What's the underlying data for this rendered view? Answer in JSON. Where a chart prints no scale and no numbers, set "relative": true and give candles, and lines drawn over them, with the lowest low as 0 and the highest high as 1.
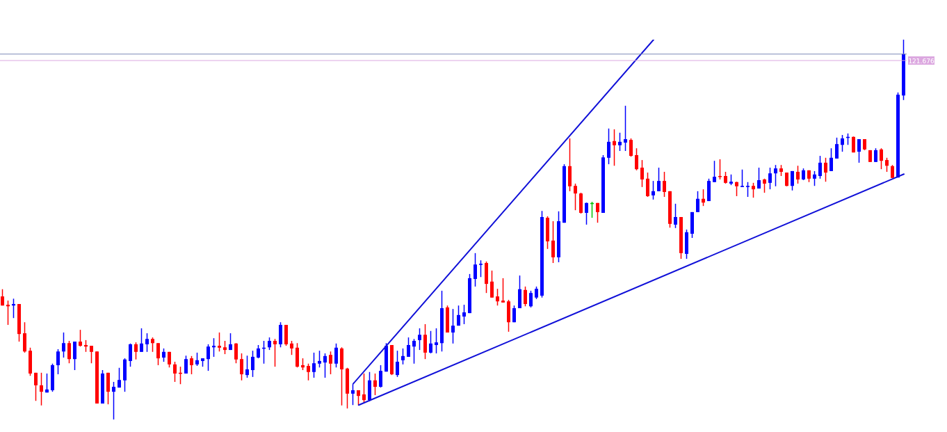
{
  "chart_data": {
    "type": "candlestick",
    "relative": true,
    "tick_labels": false,
    "categories": [
      null,
      null,
      null,
      null,
      null,
      null,
      null,
      null,
      null,
      null,
      null,
      null,
      null,
      null,
      null,
      null,
      null,
      null,
      null,
      null,
      null,
      null,
      null,
      null,
      null,
      null,
      null,
      null,
      null,
      null,
      null,
      null,
      null,
      null,
      null,
      null,
      null,
      null,
      null,
      null,
      null,
      null,
      null,
      null,
      null,
      null,
      null,
      null,
      null,
      null,
      null,
      null,
      null,
      null,
      null,
      null,
      null,
      null,
      null,
      null,
      null,
      null,
      null,
      null,
      null,
      null,
      null,
      null,
      null,
      null,
      null,
      null,
      null,
      null,
      null,
      null,
      null,
      null,
      null,
      null,
      null,
      null,
      null,
      null,
      null,
      null,
      null,
      null,
      null,
      null,
      null,
      null,
      null,
      null,
      null,
      null,
      null,
      null,
      null,
      null,
      null,
      null,
      null,
      null,
      null,
      null,
      null,
      null,
      null,
      null,
      null,
      null,
      null,
      null,
      null,
      null,
      null,
      null,
      null,
      null,
      null,
      null,
      null,
      null,
      null,
      null,
      null,
      null,
      null,
      null,
      null,
      null,
      null,
      null,
      null,
      null,
      null,
      null,
      null,
      null,
      null,
      null,
      null,
      null,
      null,
      null,
      null,
      null,
      null,
      null,
      null,
      null,
      null,
      null,
      null,
      null,
      null,
      null,
      null,
      null,
      null,
      null,
      null
    ],
    "ohlc": [
      [
        0.324,
        0.343,
        0.3,
        0.3
      ],
      [
        0.302,
        0.313,
        0.249,
        0.298
      ],
      [
        0.3,
        0.318,
        0.267,
        0.304
      ],
      [
        0.304,
        0.304,
        0.205,
        0.225
      ],
      [
        0.227,
        0.256,
        0.176,
        0.179
      ],
      [
        0.181,
        0.189,
        0.115,
        0.121
      ],
      [
        0.123,
        0.123,
        0.049,
        0.09
      ],
      [
        0.09,
        0.123,
        0.037,
        0.073
      ],
      [
        0.071,
        0.121,
        0.071,
        0.079
      ],
      [
        0.077,
        0.147,
        0.073,
        0.143
      ],
      [
        0.143,
        0.185,
        0.119,
        0.179
      ],
      [
        0.179,
        0.229,
        0.163,
        0.201
      ],
      [
        0.201,
        0.207,
        0.148,
        0.159
      ],
      [
        0.159,
        0.205,
        0.13,
        0.205
      ],
      [
        0.205,
        0.236,
        0.192,
        0.194
      ],
      [
        0.196,
        0.209,
        0.178,
        0.192
      ],
      [
        0.194,
        0.194,
        0.148,
        0.178
      ],
      [
        0.179,
        0.179,
        0.042,
        0.042
      ],
      [
        0.042,
        0.13,
        0.042,
        0.121
      ],
      [
        0.123,
        0.123,
        0.04,
        0.073
      ],
      [
        0.073,
        0.099,
        0,
        0.086
      ],
      [
        0.084,
        0.136,
        0.084,
        0.104
      ],
      [
        0.103,
        0.161,
        0.073,
        0.158
      ],
      [
        0.154,
        0.2,
        0.139,
        0.198
      ],
      [
        0.198,
        0.203,
        0.158,
        0.178
      ],
      [
        0.178,
        0.24,
        0.178,
        0.2
      ],
      [
        0.198,
        0.227,
        0.178,
        0.212
      ],
      [
        0.212,
        0.216,
        0.178,
        0.201
      ],
      [
        0.201,
        0.201,
        0.143,
        0.161
      ],
      [
        0.163,
        0.187,
        0.152,
        0.178
      ],
      [
        0.178,
        0.178,
        0.137,
        0.145
      ],
      [
        0.145,
        0.152,
        0.099,
        0.121
      ],
      [
        0.123,
        0.139,
        0.093,
        0.121
      ],
      [
        0.121,
        0.168,
        0.121,
        0.159
      ],
      [
        0.161,
        0.167,
        0.119,
        0.143
      ],
      [
        0.145,
        0.176,
        0.141,
        0.156
      ],
      [
        0.154,
        0.161,
        0.139,
        0.161
      ],
      [
        0.159,
        0.198,
        0.128,
        0.192
      ],
      [
        0.19,
        0.214,
        0.165,
        0.194
      ],
      [
        0.194,
        0.229,
        0.179,
        0.189
      ],
      [
        0.19,
        0.207,
        0.172,
        0.183
      ],
      [
        0.183,
        0.227,
        0.183,
        0.198
      ],
      [
        0.2,
        0.201,
        0.148,
        0.158
      ],
      [
        0.159,
        0.174,
        0.103,
        0.119
      ],
      [
        0.117,
        0.168,
        0.11,
        0.132
      ],
      [
        0.13,
        0.181,
        0.112,
        0.165
      ],
      [
        0.163,
        0.196,
        0.161,
        0.187
      ],
      [
        0.187,
        0.207,
        0.147,
        0.189
      ],
      [
        0.19,
        0.216,
        0.183,
        0.207
      ],
      [
        0.207,
        0.212,
        0.139,
        0.198
      ],
      [
        0.198,
        0.256,
        0.19,
        0.249
      ],
      [
        0.249,
        0.249,
        0.194,
        0.198
      ],
      [
        0.2,
        0.207,
        0.17,
        0.187
      ],
      [
        0.189,
        0.201,
        0.137,
        0.139
      ],
      [
        0.143,
        0.161,
        0.13,
        0.137
      ],
      [
        0.141,
        0.147,
        0.103,
        0.125
      ],
      [
        0.125,
        0.176,
        0.11,
        0.148
      ],
      [
        0.147,
        0.181,
        0.137,
        0.154
      ],
      [
        0.15,
        0.174,
        0.11,
        0.167
      ],
      [
        0.17,
        0.179,
        0.119,
        0.147
      ],
      [
        0.147,
        0.2,
        0.137,
        0.189
      ],
      [
        0.187,
        0.19,
        0.037,
        0.132
      ],
      [
        0.134,
        0.136,
        0.029,
        0.068
      ],
      [
        0.068,
        0.093,
        0.038,
        0.077
      ],
      [
        0.077,
        0.077,
        0.037,
        0.062
      ],
      [
        0.066,
        0.121,
        0.044,
        0.051
      ],
      [
        0.051,
        0.125,
        0.048,
        0.103
      ],
      [
        0.103,
        0.121,
        0.064,
        0.086
      ],
      [
        0.086,
        0.143,
        0.084,
        0.128
      ],
      [
        0.126,
        0.201,
        0.126,
        0.194
      ],
      [
        0.196,
        0.196,
        0.117,
        0.119
      ],
      [
        0.117,
        0.181,
        0.112,
        0.152
      ],
      [
        0.156,
        0.187,
        0.145,
        0.167
      ],
      [
        0.165,
        0.216,
        0.165,
        0.196
      ],
      [
        0.192,
        0.212,
        0.147,
        0.207
      ],
      [
        0.209,
        0.24,
        0.183,
        0.223
      ],
      [
        0.223,
        0.251,
        0.159,
        0.176
      ],
      [
        0.176,
        0.233,
        0.174,
        0.2
      ],
      [
        0.196,
        0.24,
        0.174,
        0.203
      ],
      [
        0.201,
        0.339,
        0.179,
        0.293
      ],
      [
        0.295,
        0.3,
        0.229,
        0.229
      ],
      [
        0.229,
        0.291,
        0.2,
        0.247
      ],
      [
        0.247,
        0.3,
        0.247,
        0.275
      ],
      [
        0.271,
        0.302,
        0.251,
        0.282
      ],
      [
        0.28,
        0.383,
        0.28,
        0.372
      ],
      [
        0.37,
        0.438,
        0.35,
        0.408
      ],
      [
        0.407,
        0.419,
        0.375,
        0.41
      ],
      [
        0.412,
        0.416,
        0.333,
        0.357
      ],
      [
        0.363,
        0.392,
        0.321,
        0.321
      ],
      [
        0.324,
        0.344,
        0.3,
        0.311
      ],
      [
        0.313,
        0.372,
        0.308,
        0.308
      ],
      [
        0.311,
        0.315,
        0.231,
        0.256
      ],
      [
        0.256,
        0.3,
        0.256,
        0.293
      ],
      [
        0.293,
        0.379,
        0.293,
        0.343
      ],
      [
        0.341,
        0.35,
        0.298,
        0.304
      ],
      [
        0.298,
        0.339,
        0.295,
        0.333
      ],
      [
        0.321,
        0.35,
        0.317,
        0.344
      ],
      [
        0.326,
        0.549,
        0.321,
        0.533
      ],
      [
        0.531,
        0.535,
        0.449,
        0.469
      ],
      [
        0.471,
        0.522,
        0.412,
        0.427
      ],
      [
        0.427,
        0.548,
        0.414,
        0.522
      ],
      [
        0.518,
        0.672,
        0.518,
        0.667
      ],
      [
        0.667,
        0.74,
        0.601,
        0.614
      ],
      [
        0.615,
        0.621,
        0.551,
        0.595
      ],
      [
        0.595,
        0.597,
        0.542,
        0.544
      ],
      [
        0.544,
        0.571,
        0.513,
        0.57
      ],
      [
        0.57,
        0.573,
        0.531,
        0.57
      ],
      [
        0.57,
        0.57,
        0.518,
        0.546
      ],
      [
        0.544,
        0.696,
        0.544,
        0.69
      ],
      [
        0.689,
        0.766,
        0.672,
        0.731
      ],
      [
        0.733,
        0.764,
        0.668,
        0.722
      ],
      [
        0.722,
        0.755,
        0.707,
        0.731
      ],
      [
        0.729,
        0.826,
        0.707,
        0.738
      ],
      [
        0.736,
        0.74,
        0.692,
        0.694
      ],
      [
        0.696,
        0.714,
        0.656,
        0.659
      ],
      [
        0.663,
        0.683,
        0.612,
        0.632
      ],
      [
        0.634,
        0.65,
        0.586,
        0.588
      ],
      [
        0.59,
        0.628,
        0.579,
        0.601
      ],
      [
        0.601,
        0.663,
        0.601,
        0.628
      ],
      [
        0.628,
        0.652,
        0.586,
        0.599
      ],
      [
        0.601,
        0.601,
        0.505,
        0.515
      ],
      [
        0.513,
        0.568,
        0.504,
        0.533
      ],
      [
        0.533,
        0.533,
        0.423,
        0.438
      ],
      [
        0.436,
        0.5,
        0.423,
        0.493
      ],
      [
        0.489,
        0.546,
        0.478,
        0.546
      ],
      [
        0.546,
        0.601,
        0.546,
        0.581
      ],
      [
        0.581,
        0.606,
        0.562,
        0.571
      ],
      [
        0.575,
        0.634,
        0.575,
        0.628
      ],
      [
        0.625,
        0.681,
        0.625,
        0.639
      ],
      [
        0.641,
        0.685,
        0.632,
        0.639
      ],
      [
        0.641,
        0.652,
        0.621,
        0.623
      ],
      [
        0.621,
        0.645,
        0.617,
        0.626
      ],
      [
        0.625,
        0.626,
        0.588,
        0.614
      ],
      [
        0.612,
        0.658,
        0.612,
        0.615
      ],
      [
        0.612,
        0.625,
        0.586,
        0.615
      ],
      [
        0.615,
        0.623,
        0.584,
        0.606
      ],
      [
        0.608,
        0.663,
        0.608,
        0.63
      ],
      [
        0.632,
        0.634,
        0.597,
        0.621
      ],
      [
        0.623,
        0.663,
        0.606,
        0.648
      ],
      [
        0.648,
        0.67,
        0.614,
        0.661
      ],
      [
        0.661,
        0.67,
        0.641,
        0.652
      ],
      [
        0.65,
        0.65,
        0.614,
        0.615
      ],
      [
        0.615,
        0.654,
        0.603,
        0.654
      ],
      [
        0.652,
        0.668,
        0.621,
        0.632
      ],
      [
        0.632,
        0.661,
        0.63,
        0.656
      ],
      [
        0.656,
        0.656,
        0.625,
        0.634
      ],
      [
        0.634,
        0.654,
        0.615,
        0.645
      ],
      [
        0.641,
        0.694,
        0.634,
        0.676
      ],
      [
        0.676,
        0.689,
        0.626,
        0.65
      ],
      [
        0.654,
        0.714,
        0.654,
        0.689
      ],
      [
        0.687,
        0.742,
        0.687,
        0.725
      ],
      [
        0.723,
        0.749,
        0.705,
        0.74
      ],
      [
        0.742,
        0.753,
        0.723,
        0.744
      ],
      [
        0.744,
        0.745,
        0.703,
        0.703
      ],
      [
        0.705,
        0.738,
        0.676,
        0.738
      ],
      [
        0.738,
        0.738,
        0.709,
        0.711
      ],
      [
        0.709,
        0.709,
        0.678,
        0.678
      ],
      [
        0.678,
        0.714,
        0.678,
        0.709
      ],
      [
        0.711,
        0.714,
        0.659,
        0.681
      ],
      [
        0.683,
        0.689,
        0.652,
        0.668
      ],
      [
        0.667,
        0.67,
        0.636,
        0.636
      ],
      [
        0.637,
        0.861,
        0.637,
        0.855
      ],
      [
        0.853,
        1,
        0.841,
        0.962
      ]
    ],
    "colors": [
      "#ff0000",
      "#ff0000",
      "#0000ff",
      "#ff0000",
      "#ff0000",
      "#ff0000",
      "#ff0000",
      "#ff0000",
      "#0000ff",
      "#0000ff",
      "#0000ff",
      "#0000ff",
      "#ff0000",
      "#0000ff",
      "#ff0000",
      "#ff0000",
      "#ff0000",
      "#ff0000",
      "#0000ff",
      "#ff0000",
      "#0000ff",
      "#0000ff",
      "#0000ff",
      "#0000ff",
      "#ff0000",
      "#0000ff",
      "#0000ff",
      "#ff0000",
      "#ff0000",
      "#0000ff",
      "#ff0000",
      "#ff0000",
      "#ff0000",
      "#0000ff",
      "#ff0000",
      "#0000ff",
      "#0000ff",
      "#0000ff",
      "#0000ff",
      "#ff0000",
      "#ff0000",
      "#0000ff",
      "#ff0000",
      "#ff0000",
      "#0000ff",
      "#0000ff",
      "#0000ff",
      "#0000ff",
      "#0000ff",
      "#ff0000",
      "#0000ff",
      "#ff0000",
      "#ff0000",
      "#ff0000",
      "#ff0000",
      "#ff0000",
      "#0000ff",
      "#0000ff",
      "#0000ff",
      "#ff0000",
      "#0000ff",
      "#ff0000",
      "#ff0000",
      "#0000ff",
      "#ff0000",
      "#ff0000",
      "#0000ff",
      "#ff0000",
      "#0000ff",
      "#0000ff",
      "#ff0000",
      "#0000ff",
      "#0000ff",
      "#0000ff",
      "#0000ff",
      "#0000ff",
      "#ff0000",
      "#0000ff",
      "#0000ff",
      "#0000ff",
      "#ff0000",
      "#0000ff",
      "#0000ff",
      "#0000ff",
      "#0000ff",
      "#0000ff",
      "#0000ff",
      "#ff0000",
      "#ff0000",
      "#ff0000",
      "#ff0000",
      "#ff0000",
      "#0000ff",
      "#0000ff",
      "#ff0000",
      "#0000ff",
      "#0000ff",
      "#0000ff",
      "#ff0000",
      "#ff0000",
      "#0000ff",
      "#0000ff",
      "#ff0000",
      "#ff0000",
      "#ff0000",
      "#0000ff",
      "#00c000",
      "#ff0000",
      "#0000ff",
      "#0000ff",
      "#ff0000",
      "#0000ff",
      "#0000ff",
      "#ff0000",
      "#ff0000",
      "#ff0000",
      "#ff0000",
      "#0000ff",
      "#0000ff",
      "#ff0000",
      "#ff0000",
      "#0000ff",
      "#ff0000",
      "#0000ff",
      "#0000ff",
      "#0000ff",
      "#ff0000",
      "#0000ff",
      "#0000ff",
      "#ff0000",
      "#ff0000",
      "#0000ff",
      "#ff0000",
      "#0000ff",
      "#0000ff",
      "#ff0000",
      "#0000ff",
      "#ff0000",
      "#0000ff",
      "#0000ff",
      "#ff0000",
      "#ff0000",
      "#0000ff",
      "#ff0000",
      "#0000ff",
      "#ff0000",
      "#0000ff",
      "#0000ff",
      "#ff0000",
      "#0000ff",
      "#0000ff",
      "#0000ff",
      "#0000ff",
      "#ff0000",
      "#0000ff",
      "#ff0000",
      "#ff0000",
      "#0000ff",
      "#ff0000",
      "#ff0000",
      "#ff0000",
      "#0000ff",
      "#0000ff"
    ],
    "series": [
      {
        "type": "line",
        "color": "#1010d8",
        "values": [
          null,
          null,
          null,
          null,
          null,
          null,
          null,
          null,
          null,
          null,
          null,
          null,
          null,
          null,
          null,
          null,
          null,
          null,
          null,
          null,
          null,
          null,
          null,
          null,
          null,
          null,
          null,
          null,
          null,
          null,
          null,
          null,
          null,
          null,
          null,
          null,
          null,
          null,
          null,
          null,
          null,
          null,
          null,
          null,
          null,
          null,
          null,
          null,
          null,
          null,
          null,
          null,
          null,
          null,
          null,
          null,
          null,
          null,
          null,
          null,
          null,
          null,
          null,
          0.094,
          null,
          null,
          null,
          null,
          null,
          null,
          null,
          null,
          null,
          null,
          null,
          null,
          null,
          null,
          null,
          null,
          null,
          null,
          null,
          null,
          null,
          null,
          null,
          null,
          null,
          null,
          null,
          null,
          null,
          null,
          null,
          null,
          null,
          null,
          null,
          null,
          null,
          null,
          null,
          null,
          null,
          null,
          null,
          null,
          null,
          null,
          null,
          null,
          null,
          null,
          null,
          null,
          null,
          1,
          null,
          null,
          null,
          null,
          null,
          null,
          null,
          null,
          null,
          null,
          null,
          null,
          null,
          null,
          null,
          null,
          null,
          null,
          null,
          null,
          null,
          null,
          null,
          null,
          null,
          null,
          null,
          null,
          null,
          null,
          null,
          null,
          null,
          null,
          null,
          null,
          null,
          null,
          null,
          null,
          null,
          null,
          null,
          null,
          null
        ]
      },
      {
        "type": "line",
        "color": "#1010d8",
        "values": [
          null,
          null,
          null,
          null,
          null,
          null,
          null,
          null,
          null,
          null,
          null,
          null,
          null,
          null,
          null,
          null,
          null,
          null,
          null,
          null,
          null,
          null,
          null,
          null,
          null,
          null,
          null,
          null,
          null,
          null,
          null,
          null,
          null,
          null,
          null,
          null,
          null,
          null,
          null,
          null,
          null,
          null,
          null,
          null,
          null,
          null,
          null,
          null,
          null,
          null,
          null,
          null,
          null,
          null,
          null,
          null,
          null,
          null,
          null,
          null,
          null,
          null,
          null,
          null,
          0.038,
          null,
          null,
          null,
          null,
          null,
          null,
          null,
          null,
          null,
          null,
          null,
          null,
          null,
          null,
          null,
          null,
          null,
          null,
          null,
          null,
          null,
          null,
          null,
          null,
          null,
          null,
          null,
          null,
          null,
          null,
          null,
          null,
          null,
          null,
          null,
          null,
          null,
          null,
          null,
          null,
          null,
          null,
          null,
          null,
          null,
          null,
          null,
          null,
          null,
          null,
          null,
          null,
          null,
          null,
          null,
          null,
          null,
          null,
          null,
          null,
          null,
          null,
          null,
          null,
          null,
          null,
          null,
          null,
          null,
          null,
          null,
          null,
          null,
          null,
          null,
          null,
          null,
          null,
          null,
          null,
          null,
          null,
          null,
          null,
          null,
          null,
          null,
          null,
          null,
          null,
          null,
          null,
          null,
          null,
          null,
          null,
          null,
          0.646
        ]
      }
    ],
    "ref_lines": [
      {
        "axis": "y",
        "value": 0.962,
        "color": "#7c88b8"
      },
      {
        "axis": "y",
        "value": 0.945,
        "color": "#dca8e0"
      }
    ],
    "annotations": [
      "121.676"
    ]
  }
}
